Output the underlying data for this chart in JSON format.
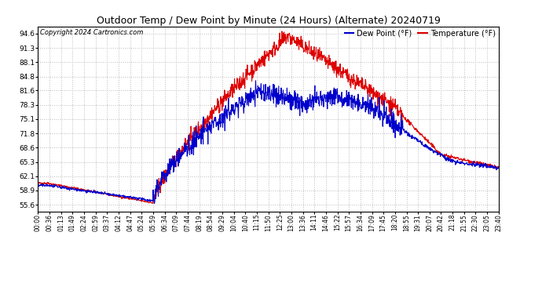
{
  "title": "Outdoor Temp / Dew Point by Minute (24 Hours) (Alternate) 20240719",
  "copyright": "Copyright 2024 Cartronics.com",
  "legend_dew": "Dew Point (°F)",
  "legend_temp": "Temperature (°F)",
  "yticks": [
    55.6,
    58.9,
    62.1,
    65.3,
    68.6,
    71.8,
    75.1,
    78.3,
    81.6,
    84.8,
    88.1,
    91.3,
    94.6
  ],
  "ylim": [
    54.0,
    96.2
  ],
  "xtick_labels": [
    "00:00",
    "00:36",
    "01:13",
    "01:49",
    "02:24",
    "02:59",
    "03:37",
    "04:12",
    "04:47",
    "05:24",
    "05:59",
    "06:34",
    "07:09",
    "07:44",
    "08:19",
    "08:54",
    "09:29",
    "10:04",
    "10:40",
    "11:15",
    "11:50",
    "12:25",
    "13:00",
    "13:36",
    "14:11",
    "14:46",
    "15:22",
    "15:57",
    "16:34",
    "17:09",
    "17:45",
    "18:20",
    "18:55",
    "19:31",
    "20:07",
    "20:42",
    "21:18",
    "21:55",
    "22:30",
    "23:05",
    "23:40"
  ],
  "bg_color": "#ffffff",
  "grid_color": "#bbbbbb",
  "temp_color": "#dd0000",
  "dew_color": "#0000cc",
  "temp_lw": 0.8,
  "dew_lw": 0.8
}
